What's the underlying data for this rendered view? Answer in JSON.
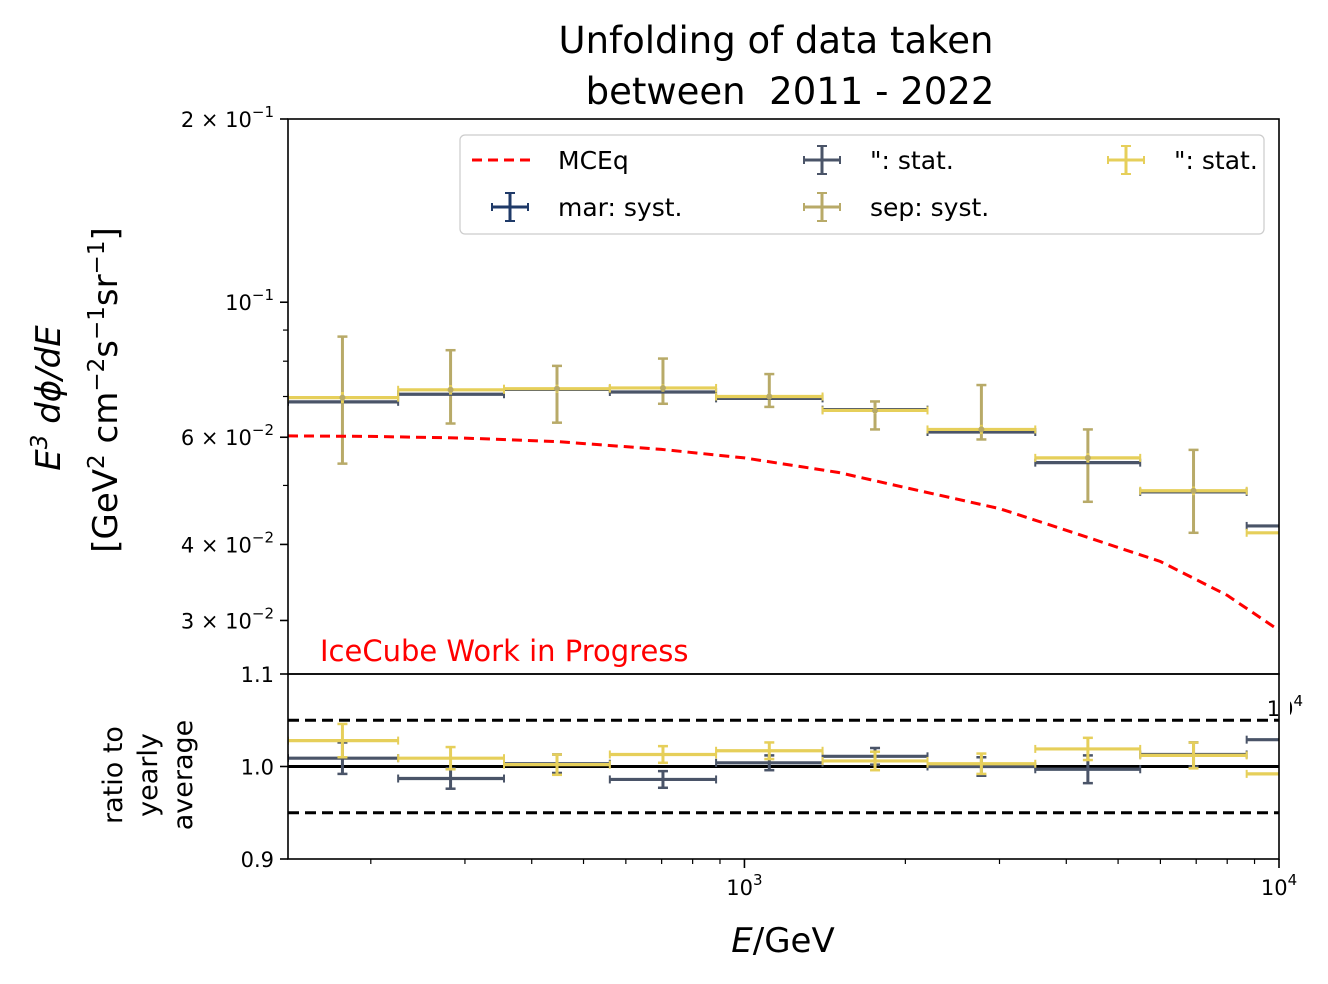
{
  "chart_data": {
    "type": "scatter",
    "title": [
      "Unfolding of data taken",
      "between  2011 - 2022"
    ],
    "xlabel_main": "E",
    "xlabel_unit": "/GeV",
    "xscale": "log",
    "xlim": [
      140,
      10000
    ],
    "x_edges": [
      140,
      225,
      355,
      560,
      885,
      1400,
      2200,
      3500,
      5500,
      8700,
      13700
    ],
    "x_centers": [
      177,
      282,
      446,
      704,
      1113,
      1755,
      2775,
      4390,
      6920,
      10920
    ],
    "annotation": "IceCube Work in Progress",
    "legend": {
      "placement": "upper-right",
      "entries": [
        {
          "label": "MCEq",
          "color": "#ff0000",
          "style": "dashed"
        },
        {
          "label": "mar: syst.",
          "color": "#1f3a68",
          "style": "errorbar"
        },
        {
          "label": "\": stat.",
          "color": "#4a5468",
          "style": "errorbar"
        },
        {
          "label": "sep: syst.",
          "color": "#b8aa68",
          "style": "errorbar"
        },
        {
          "label": "\": stat.",
          "color": "#e6cf5a",
          "style": "errorbar"
        }
      ]
    },
    "main_panel": {
      "ylabel_line1": "E³ dϕ/dE",
      "ylabel_line2": "[GeV² cm⁻²s⁻¹sr⁻¹]",
      "yscale": "log",
      "ylim": [
        0.0245,
        0.2
      ],
      "yticks": [
        {
          "value": 0.2,
          "mant": "2 × 10",
          "exp": "−1"
        },
        {
          "value": 0.1,
          "mant": "10",
          "exp": "−1"
        },
        {
          "value": 0.06,
          "mant": "6 × 10",
          "exp": "−2"
        },
        {
          "value": 0.04,
          "mant": "4 × 10",
          "exp": "−2"
        },
        {
          "value": 0.03,
          "mant": "3 × 10",
          "exp": "−2"
        }
      ],
      "mceq": {
        "x": [
          140,
          200,
          300,
          450,
          700,
          1000,
          1500,
          2000,
          3000,
          4000,
          6000,
          8000,
          10000
        ],
        "y": [
          0.0603,
          0.0602,
          0.0598,
          0.059,
          0.0573,
          0.0555,
          0.0525,
          0.0496,
          0.0458,
          0.0422,
          0.0375,
          0.033,
          0.0289
        ]
      },
      "series": [
        {
          "name": "mar",
          "color": "#4a5468",
          "syst_color": "#1f3a68",
          "y": [
            0.0686,
            0.0706,
            0.0719,
            0.0712,
            0.0695,
            0.0666,
            0.0612,
            0.0545,
            0.0488,
            0.0429
          ]
        },
        {
          "name": "sep",
          "color": "#e6cf5a",
          "syst_color": "#b8aa68",
          "y": [
            0.0697,
            0.0718,
            0.0721,
            0.0723,
            0.07,
            0.0664,
            0.0618,
            0.0555,
            0.049,
            0.0418
          ],
          "syst_low": [
            0.0543,
            0.0632,
            0.0634,
            0.0681,
            0.0673,
            0.0618,
            0.0595,
            0.047,
            0.0418,
            0.0349
          ],
          "syst_high": [
            0.0878,
            0.0834,
            0.0786,
            0.0808,
            0.0762,
            0.0687,
            0.0731,
            0.0618,
            0.0572,
            0.0484
          ],
          "stat_low": [
            0.0682,
            0.0705,
            0.071,
            0.0713,
            0.0692,
            0.0656,
            0.0607,
            0.0545,
            0.0482,
            0.041
          ],
          "stat_high": [
            0.0712,
            0.0731,
            0.0732,
            0.0733,
            0.0708,
            0.0672,
            0.0629,
            0.0565,
            0.0498,
            0.0426
          ]
        }
      ]
    },
    "ratio_panel": {
      "ylabel": [
        "ratio to",
        "yearly",
        "average"
      ],
      "ylim": [
        0.9,
        1.1
      ],
      "yticks": [
        "0.9",
        "1.0",
        "1.1"
      ],
      "bands": [
        0.95,
        1.05
      ],
      "reference": 1.0,
      "series": [
        {
          "name": "mar",
          "color": "#4a5468",
          "y": [
            1.009,
            0.987,
            1.003,
            0.986,
            1.004,
            1.011,
            1.0,
            0.997,
            1.013,
            1.029
          ],
          "err": [
            0.017,
            0.011,
            0.01,
            0.009,
            0.008,
            0.009,
            0.01,
            0.015,
            0.013,
            0.02
          ]
        },
        {
          "name": "sep",
          "color": "#e6cf5a",
          "y": [
            1.028,
            1.009,
            1.002,
            1.013,
            1.017,
            1.006,
            1.003,
            1.019,
            1.012,
            0.992
          ],
          "err": [
            0.018,
            0.012,
            0.011,
            0.009,
            0.009,
            0.01,
            0.011,
            0.012,
            0.014,
            0.014
          ]
        }
      ],
      "stray_tick": {
        "mant": "10",
        "exp": "4"
      }
    },
    "xticks": [
      {
        "value": 1000,
        "mant": "10",
        "exp": "3"
      },
      {
        "value": 10000,
        "mant": "10",
        "exp": "4"
      }
    ]
  }
}
